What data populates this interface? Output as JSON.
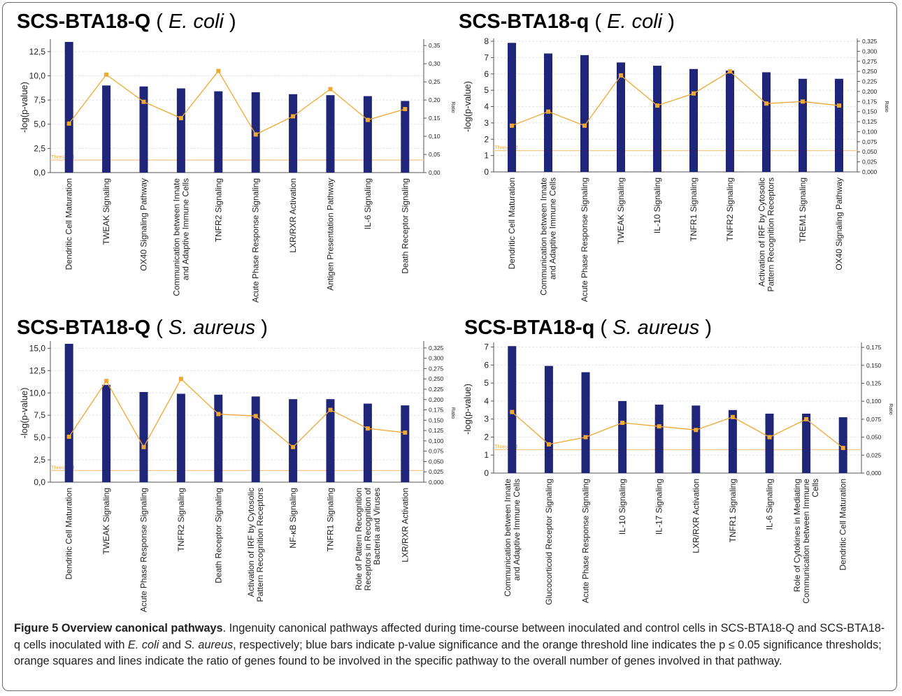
{
  "chart_data": [
    {
      "type": "bar",
      "title_main": "SCS-BTA18-Q",
      "title_paren_open": " ( ",
      "title_organism": "E. coli",
      "title_paren_close": " )",
      "ylabel": "-log(p-value)",
      "y2label": "Ratio",
      "threshold_label": "Threshold",
      "threshold": 1.3,
      "ylim": [
        0,
        13.5
      ],
      "yticks": [
        "0,0",
        "2,5",
        "5,0",
        "7,5",
        "10,0",
        "12,5"
      ],
      "yticks_values": [
        0,
        2.5,
        5,
        7.5,
        10,
        12.5
      ],
      "y2lim": [
        0,
        0.36
      ],
      "y2ticks": [
        "0,00",
        "0,05",
        "0,10",
        "0,15",
        "0,20",
        "0,25",
        "0,30",
        "0,35"
      ],
      "y2ticks_values": [
        0,
        0.05,
        0.1,
        0.15,
        0.2,
        0.25,
        0.3,
        0.35
      ],
      "categories": [
        "Dendritic Cell Maturation",
        "TWEAK Signaling",
        "OX40 Signaling Pathway",
        "Communication between Innate\nand Adaptive Immune Cells",
        "TNFR2 Signaling",
        "Acute Phase Response Signaling",
        "LXR/RXR Activation",
        "Antigen Presentation Pathway",
        "IL-6 Signaling",
        "Death Receptor Signaling"
      ],
      "values": [
        13.5,
        9.0,
        8.9,
        8.7,
        8.4,
        8.3,
        8.1,
        8.0,
        7.9,
        7.4
      ],
      "ratio": [
        0.135,
        0.27,
        0.195,
        0.15,
        0.28,
        0.105,
        0.155,
        0.23,
        0.145,
        0.175
      ]
    },
    {
      "type": "bar",
      "title_main": "SCS-BTA18-q",
      "title_paren_open": " ( ",
      "title_organism": "E. coli",
      "title_paren_close": " )",
      "ylabel": "-log(p-value)",
      "y2label": "Ratio",
      "threshold_label": "Threshold",
      "threshold": 1.3,
      "ylim": [
        0,
        8
      ],
      "yticks": [
        "0",
        "1",
        "2",
        "3",
        "4",
        "5",
        "6",
        "7",
        "8"
      ],
      "yticks_values": [
        0,
        1,
        2,
        3,
        4,
        5,
        6,
        7,
        8
      ],
      "y2lim": [
        0,
        0.325
      ],
      "y2ticks": [
        "0,000",
        "0,025",
        "0,050",
        "0,075",
        "0,100",
        "0,125",
        "0,150",
        "0,175",
        "0,200",
        "0,225",
        "0,250",
        "0,275",
        "0,300",
        "0,325"
      ],
      "y2ticks_values": [
        0,
        0.025,
        0.05,
        0.075,
        0.1,
        0.125,
        0.15,
        0.175,
        0.2,
        0.225,
        0.25,
        0.275,
        0.3,
        0.325
      ],
      "categories": [
        "Dendritic Cell Maturation",
        "Communication between Innate\nand Adaptive Immune Cells",
        "Acute Phase Response Signaling",
        "TWEAK Signaling",
        "IL-10 Signaling",
        "TNFR1 Signaling",
        "TNFR2 Signaling",
        "Activation of IRF by Cytosolic\nPattern Recognition Receptors",
        "TREM1 Signaling",
        "OX40 Signaling Pathway"
      ],
      "values": [
        7.9,
        7.25,
        7.15,
        6.7,
        6.5,
        6.3,
        6.2,
        6.1,
        5.7,
        5.7
      ],
      "ratio": [
        0.115,
        0.15,
        0.115,
        0.24,
        0.165,
        0.195,
        0.25,
        0.17,
        0.175,
        0.165
      ]
    },
    {
      "type": "bar",
      "title_main": "SCS-BTA18-Q",
      "title_paren_open": " ( ",
      "title_organism": "S. aureus",
      "title_paren_close": " )",
      "ylabel": "-log(p-value)",
      "y2label": "Ratio",
      "threshold_label": "Threshold",
      "threshold": 1.3,
      "ylim": [
        0,
        15.5
      ],
      "yticks": [
        "0,0",
        "2,5",
        "5,0",
        "7,5",
        "10,0",
        "12,5",
        "15,0"
      ],
      "yticks_values": [
        0,
        2.5,
        5,
        7.5,
        10,
        12.5,
        15
      ],
      "y2lim": [
        0,
        0.335
      ],
      "y2ticks": [
        "0,000",
        "0,025",
        "0,050",
        "0,075",
        "0,100",
        "0,125",
        "0,150",
        "0,175",
        "0,200",
        "0,225",
        "0,250",
        "0,275",
        "0,300",
        "0,325"
      ],
      "y2ticks_values": [
        0,
        0.025,
        0.05,
        0.075,
        0.1,
        0.125,
        0.15,
        0.175,
        0.2,
        0.225,
        0.25,
        0.275,
        0.3,
        0.325
      ],
      "categories": [
        "Dendritic Cell Maturation",
        "TWEAK Signaling",
        "Acute Phase Response Signaling",
        "TNFR2 Signaling",
        "Death Receptor Signaling",
        "Activation of IRF by Cytosolic\nPattern Recognition Receptors",
        "NF-κB Signaling",
        "TNFR1 Signaling",
        "Role of Pattern Recognition\nReceptors in Recognition of\nBacteria and Viruses",
        "LXR/RXR Activation"
      ],
      "values": [
        15.5,
        10.9,
        10.1,
        9.9,
        9.8,
        9.6,
        9.3,
        9.3,
        8.8,
        8.6
      ],
      "ratio": [
        0.11,
        0.245,
        0.085,
        0.25,
        0.165,
        0.16,
        0.085,
        0.175,
        0.13,
        0.12
      ]
    },
    {
      "type": "bar",
      "title_main": "SCS-BTA18-q",
      "title_paren_open": " ( ",
      "title_organism": "S. aureus",
      "title_paren_close": " )",
      "ylabel": "-log(p-value)",
      "y2label": "Ratio",
      "threshold_label": "Threshold",
      "threshold": 1.3,
      "ylim": [
        0,
        7.1
      ],
      "yticks": [
        "0",
        "1",
        "2",
        "3",
        "4",
        "5",
        "6",
        "7"
      ],
      "yticks_values": [
        0,
        1,
        2,
        3,
        4,
        5,
        6,
        7
      ],
      "y2lim": [
        0,
        0.178
      ],
      "y2ticks": [
        "0,000",
        "0,025",
        "0,050",
        "0,075",
        "0,100",
        "0,125",
        "0,150",
        "0,175"
      ],
      "y2ticks_values": [
        0,
        0.025,
        0.05,
        0.075,
        0.1,
        0.125,
        0.15,
        0.175
      ],
      "categories": [
        "Communication between Innate\nand Adaptive Immune Cells",
        "Glucocorticoid Receptor Signaling",
        "Acute Phase Response Signaling",
        "IL-10 Signaling",
        "IL-17 Signaling",
        "LXR/RXR Activation",
        "TNFR1 Signaling",
        "IL-6 Signaling",
        "Role of Cytokines in Mediating\nCommunication between Immune\nCells",
        "Dendritic Cell Maturation"
      ],
      "values": [
        7.05,
        5.95,
        5.6,
        4.0,
        3.8,
        3.75,
        3.5,
        3.3,
        3.3,
        3.1
      ],
      "ratio": [
        0.085,
        0.04,
        0.05,
        0.07,
        0.065,
        0.06,
        0.078,
        0.05,
        0.075,
        0.035
      ]
    }
  ],
  "caption": {
    "title": "Figure 5 Overview canonical pathways",
    "text_1": ". Ingenuity canonical pathways affected during time-course between inoculated and control cells in SCS-BTA18-Q and SCS-BTA18-q cells inoculated with ",
    "organism_1": "E. coli",
    "text_2": " and ",
    "organism_2": "S. aureus",
    "text_3": ", respectively; blue bars indicate p-value significance and the orange threshold line indicates the p ≤ 0.05 significance thresholds; orange squares and lines indicate the ratio of genes found to be involved in the specific pathway to the overall number of genes involved in that pathway."
  },
  "colors": {
    "bar": "#1f2677",
    "ratio": "#f0a830",
    "threshold": "#f5c88a",
    "grid": "#e4e4e4",
    "axis": "#555555",
    "text": "#222222"
  }
}
